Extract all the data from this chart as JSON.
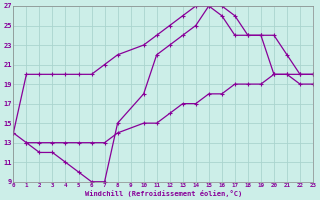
{
  "xlabel": "Windchill (Refroidissement éolien,°C)",
  "background_color": "#cceee8",
  "grid_color": "#aad4ce",
  "line_color": "#880099",
  "xlim": [
    0,
    23
  ],
  "ylim": [
    9,
    27
  ],
  "xticks": [
    0,
    1,
    2,
    3,
    4,
    5,
    6,
    7,
    8,
    9,
    10,
    11,
    12,
    13,
    14,
    15,
    16,
    17,
    18,
    19,
    20,
    21,
    22,
    23
  ],
  "yticks": [
    9,
    11,
    13,
    15,
    17,
    19,
    21,
    23,
    25,
    27
  ],
  "series": [
    {
      "x": [
        0,
        1,
        2,
        3,
        4,
        5,
        6,
        7,
        8,
        10,
        11,
        12,
        13,
        14,
        15,
        16,
        17,
        18,
        19,
        20,
        21,
        22,
        23
      ],
      "y": [
        14,
        20,
        20,
        20,
        20,
        20,
        20,
        21,
        22,
        23,
        24,
        25,
        26,
        27,
        27,
        27,
        26,
        24,
        24,
        24,
        22,
        20,
        20
      ]
    },
    {
      "x": [
        1,
        2,
        3,
        4,
        5,
        6,
        7,
        8,
        10,
        11,
        12,
        13,
        14,
        15,
        16,
        17,
        18,
        19,
        20,
        21,
        22,
        23
      ],
      "y": [
        13,
        12,
        12,
        11,
        10,
        9,
        9,
        15,
        18,
        22,
        23,
        24,
        25,
        27,
        26,
        24,
        24,
        24,
        20,
        20,
        20,
        20
      ]
    },
    {
      "x": [
        0,
        1,
        2,
        3,
        4,
        5,
        6,
        7,
        8,
        10,
        11,
        12,
        13,
        14,
        15,
        16,
        17,
        18,
        19,
        20,
        21,
        22,
        23
      ],
      "y": [
        14,
        13,
        13,
        13,
        13,
        13,
        13,
        13,
        14,
        15,
        15,
        16,
        17,
        17,
        18,
        18,
        19,
        19,
        19,
        20,
        20,
        19,
        19
      ]
    }
  ]
}
